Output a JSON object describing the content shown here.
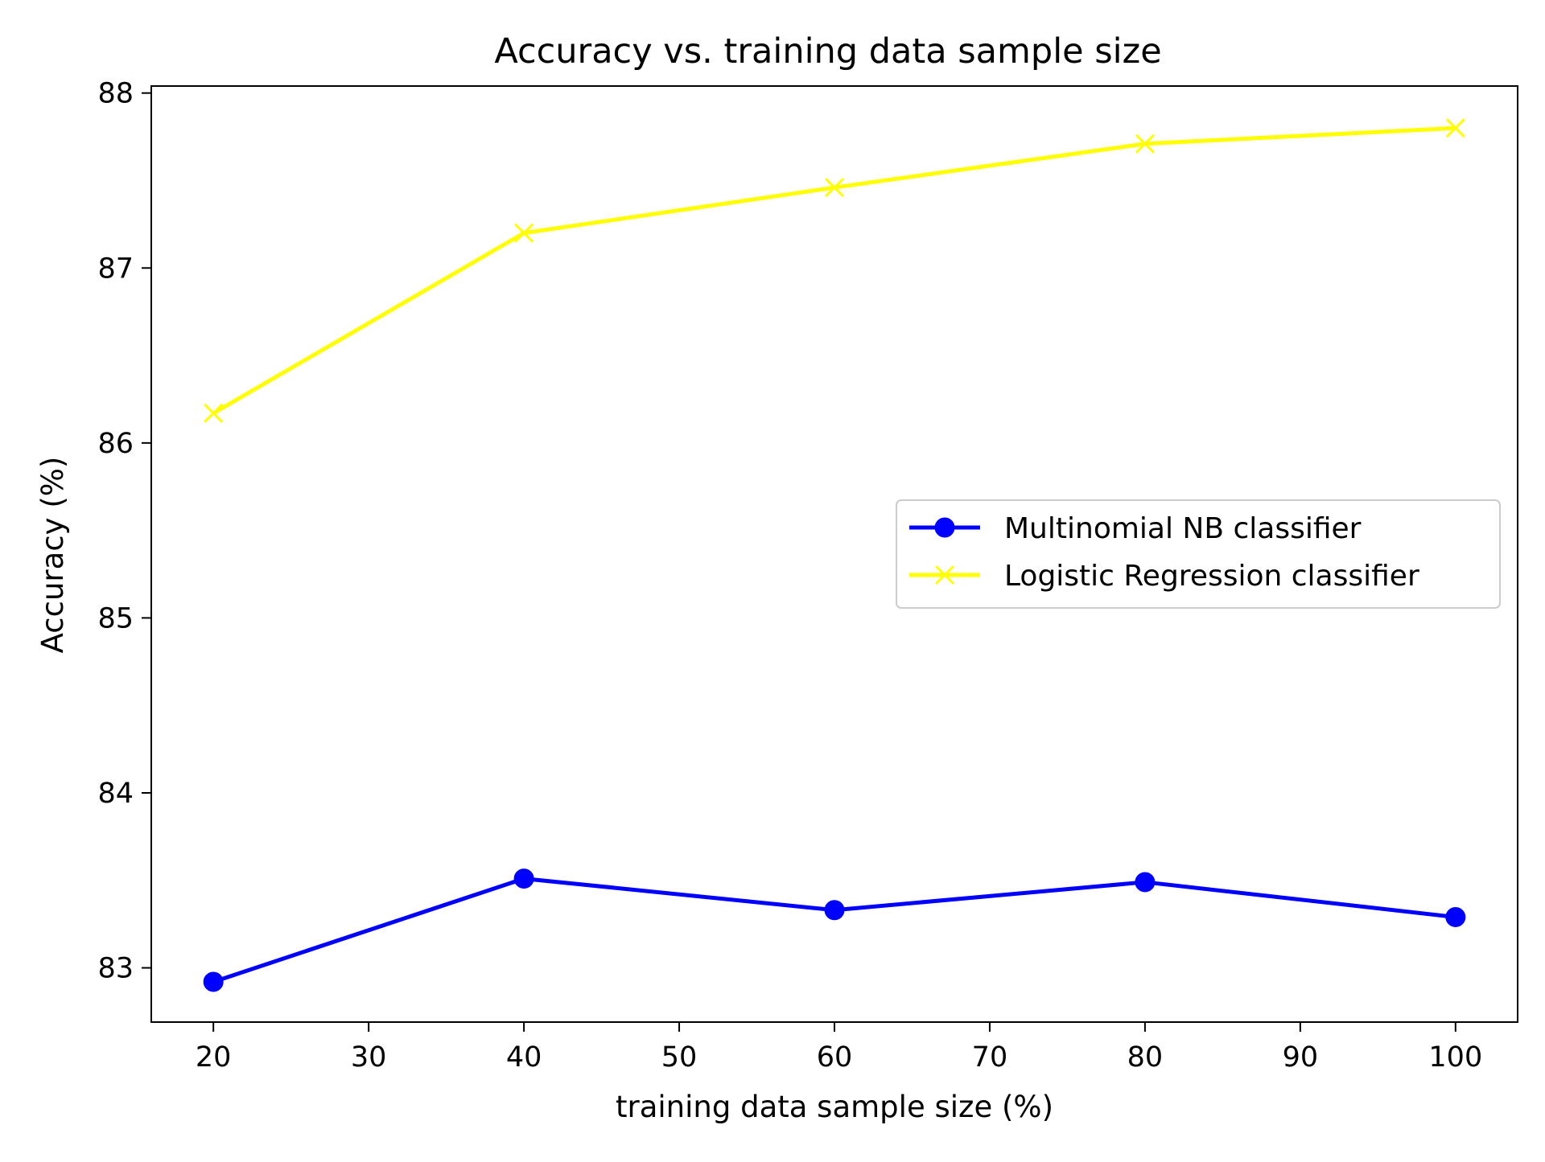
{
  "chart_data": {
    "type": "line",
    "title": "Accuracy vs. training data sample size",
    "xlabel": "training data sample size (%)",
    "ylabel": "Accuracy (%)",
    "x": [
      20,
      40,
      60,
      80,
      100
    ],
    "xlim": [
      16,
      104
    ],
    "ylim": [
      82.69,
      88.04
    ],
    "xticks": [
      20,
      30,
      40,
      50,
      60,
      70,
      80,
      90,
      100
    ],
    "yticks": [
      83,
      84,
      85,
      86,
      87,
      88
    ],
    "grid": false,
    "legend_position": "center-right",
    "series": [
      {
        "name": "Multinomial NB classifier",
        "values": [
          82.92,
          83.51,
          83.33,
          83.49,
          83.29
        ],
        "color": "#0000ff",
        "marker": "circle"
      },
      {
        "name": "Logistic Regression classifier",
        "values": [
          86.17,
          87.2,
          87.46,
          87.71,
          87.8
        ],
        "color": "#ffff00",
        "marker": "x"
      }
    ]
  }
}
